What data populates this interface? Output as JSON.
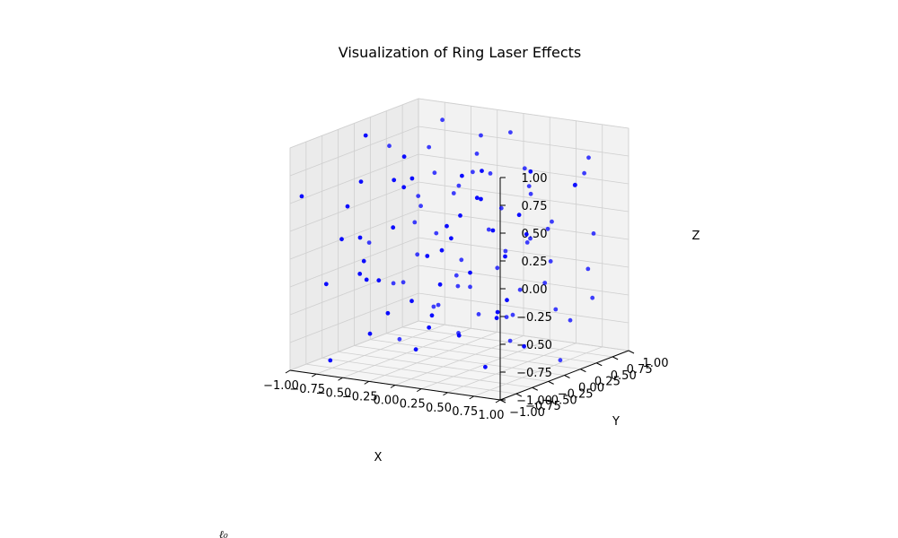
{
  "chart_data": {
    "type": "scatter",
    "projection": "3d",
    "title": "Visualization of Ring Laser Effects",
    "xlabel": "X",
    "ylabel": "Y",
    "zlabel": "Z",
    "xlim": [
      -1.0,
      1.0
    ],
    "ylim": [
      -1.0,
      1.0
    ],
    "zlim": [
      -1.0,
      1.0
    ],
    "x_ticks": [
      -1.0,
      -0.75,
      -0.5,
      -0.25,
      0.0,
      0.25,
      0.5,
      0.75,
      1.0
    ],
    "y_ticks": [
      -1.0,
      -0.75,
      -0.5,
      -0.25,
      0.0,
      0.25,
      0.5,
      0.75,
      1.0
    ],
    "z_ticks": [
      -1.0,
      -0.75,
      -0.5,
      -0.25,
      0.0,
      0.25,
      0.5,
      0.75,
      1.0
    ],
    "x_tick_labels": [
      "−1.00",
      "−0.75",
      "−0.50",
      "−0.25",
      "0.00",
      "0.25",
      "0.50",
      "0.75",
      "1.00"
    ],
    "y_tick_labels": [
      "−1.00",
      "−0.75",
      "−0.50",
      "−0.25",
      "0.00",
      "0.25",
      "0.50",
      "0.75",
      "1.00"
    ],
    "z_tick_labels": [
      "−1.00",
      "−0.75",
      "−0.50",
      "−0.25",
      "0.00",
      "0.25",
      "0.50",
      "0.75",
      "1.00"
    ],
    "grid": true,
    "marker_color": "#0000ff",
    "marker_alpha": 0.7,
    "points": [
      [
        -0.95,
        -0.9,
        0.55
      ],
      [
        -0.9,
        -0.6,
        -0.3
      ],
      [
        -0.85,
        0.3,
        0.75
      ],
      [
        -0.8,
        -0.7,
        -0.95
      ],
      [
        -0.75,
        0.2,
        -0.45
      ],
      [
        -0.7,
        -0.4,
        0.1
      ],
      [
        -0.65,
        0.8,
        0.9
      ],
      [
        -0.6,
        -0.85,
        0.2
      ],
      [
        -0.55,
        0.5,
        -0.7
      ],
      [
        -0.5,
        -0.2,
        0.6
      ],
      [
        -0.45,
        0.65,
        0.3
      ],
      [
        -0.4,
        -0.6,
        -0.2
      ],
      [
        -0.35,
        0.1,
        0.85
      ],
      [
        -0.3,
        -0.9,
        -0.6
      ],
      [
        -0.25,
        0.4,
        0.45
      ],
      [
        -0.2,
        -0.35,
        -0.85
      ],
      [
        -0.15,
        0.9,
        0.15
      ],
      [
        -0.1,
        -0.7,
        0.7
      ],
      [
        -0.05,
        0.25,
        -0.4
      ],
      [
        0.0,
        -0.5,
        0.05
      ],
      [
        0.05,
        0.75,
        -0.75
      ],
      [
        0.1,
        -0.15,
        0.35
      ],
      [
        0.15,
        0.55,
        0.95
      ],
      [
        0.2,
        -0.8,
        -0.5
      ],
      [
        0.25,
        0.05,
        0.2
      ],
      [
        0.3,
        -0.45,
        0.8
      ],
      [
        0.35,
        0.85,
        -0.25
      ],
      [
        0.4,
        -0.25,
        -0.95
      ],
      [
        0.45,
        0.35,
        0.55
      ],
      [
        0.5,
        -0.65,
        0.0
      ],
      [
        0.55,
        0.6,
        -0.6
      ],
      [
        0.6,
        -0.05,
        0.4
      ],
      [
        0.65,
        0.95,
        0.7
      ],
      [
        0.7,
        -0.55,
        -0.35
      ],
      [
        0.75,
        0.15,
        0.25
      ],
      [
        0.8,
        -0.3,
        -0.7
      ],
      [
        0.85,
        0.7,
        0.1
      ],
      [
        0.9,
        -0.95,
        0.5
      ],
      [
        0.95,
        0.45,
        -0.15
      ],
      [
        -0.9,
        0.6,
        -0.55
      ],
      [
        -0.8,
        -0.15,
        0.95
      ],
      [
        -0.7,
        0.45,
        0.05
      ],
      [
        -0.6,
        -0.55,
        0.65
      ],
      [
        -0.5,
        0.85,
        -0.35
      ],
      [
        -0.4,
        0.0,
        -0.1
      ],
      [
        -0.3,
        0.7,
        0.5
      ],
      [
        -0.2,
        -0.1,
        -0.6
      ],
      [
        -0.1,
        0.5,
        0.9
      ],
      [
        0.0,
        -0.3,
        -0.25
      ],
      [
        0.1,
        0.95,
        0.3
      ],
      [
        0.2,
        -0.6,
        0.15
      ],
      [
        0.3,
        0.3,
        -0.85
      ],
      [
        0.4,
        -0.85,
        0.45
      ],
      [
        0.5,
        0.2,
        0.75
      ],
      [
        0.6,
        -0.4,
        -0.45
      ],
      [
        0.7,
        0.8,
        0.6
      ],
      [
        0.8,
        -0.2,
        0.85
      ],
      [
        0.9,
        0.1,
        -0.9
      ],
      [
        -0.95,
        0.15,
        -0.1
      ],
      [
        -0.85,
        -0.35,
        0.35
      ],
      [
        -0.75,
        0.9,
        -0.8
      ],
      [
        -0.65,
        -0.05,
        -0.65
      ],
      [
        -0.55,
        0.3,
        0.25
      ],
      [
        -0.45,
        -0.75,
        0.0
      ],
      [
        -0.35,
        0.55,
        -0.5
      ],
      [
        -0.25,
        -0.45,
        0.9
      ],
      [
        -0.15,
        0.2,
        -0.3
      ],
      [
        -0.05,
        -0.95,
        0.4
      ],
      [
        0.05,
        0.4,
        0.6
      ],
      [
        0.15,
        -0.25,
        -0.7
      ],
      [
        0.25,
        0.65,
        -0.05
      ],
      [
        0.35,
        -0.7,
        0.3
      ],
      [
        0.45,
        0.0,
        -0.55
      ],
      [
        0.55,
        0.9,
        0.45
      ],
      [
        0.65,
        -0.35,
        0.1
      ],
      [
        0.75,
        0.5,
        -0.65
      ],
      [
        0.85,
        -0.65,
        -0.2
      ],
      [
        0.95,
        0.25,
        0.65
      ],
      [
        -0.6,
        0.05,
        -0.9
      ],
      [
        -0.2,
        0.6,
        0.7
      ],
      [
        0.2,
        -0.05,
        0.5
      ],
      [
        0.6,
        0.35,
        -0.3
      ],
      [
        -0.3,
        -0.25,
        -0.45
      ],
      [
        0.1,
        -0.9,
        0.85
      ],
      [
        0.4,
        0.45,
        0.05
      ],
      [
        -0.1,
        0.15,
        -0.8
      ],
      [
        0.7,
        -0.1,
        0.25
      ],
      [
        -0.45,
        0.35,
        0.55
      ],
      [
        0.3,
        0.1,
        -0.15
      ],
      [
        -0.85,
        0.75,
        0.2
      ],
      [
        0.85,
        0.05,
        0.35
      ],
      [
        -0.05,
        0.8,
        -0.2
      ],
      [
        0.55,
        -0.55,
        0.9
      ],
      [
        -0.7,
        -0.3,
        -0.3
      ],
      [
        0.15,
        0.7,
        -0.5
      ],
      [
        -0.25,
        0.05,
        0.1
      ],
      [
        0.0,
        0.3,
        -0.65
      ],
      [
        0.45,
        -0.4,
        0.6
      ],
      [
        -0.55,
        -0.65,
        -0.15
      ],
      [
        0.9,
        0.6,
        -0.45
      ]
    ]
  },
  "stray_text": "ℓ₀"
}
